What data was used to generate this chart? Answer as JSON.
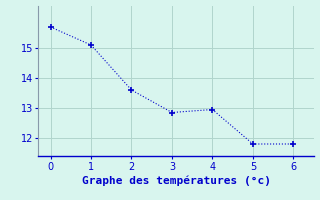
{
  "x": [
    0,
    1,
    2,
    3,
    4,
    5,
    6
  ],
  "y": [
    15.7,
    15.1,
    13.6,
    12.85,
    12.95,
    11.8,
    11.8
  ],
  "line_color": "#0000cc",
  "marker": "+",
  "marker_size": 5,
  "bg_color": "#d8f5ee",
  "grid_color": "#b0d4cc",
  "xlabel": "Graphe des températures (°c)",
  "xlabel_fontsize": 8,
  "xlim": [
    -0.3,
    6.5
  ],
  "ylim": [
    11.4,
    16.4
  ],
  "yticks": [
    12,
    13,
    14,
    15
  ],
  "xticks": [
    0,
    1,
    2,
    3,
    4,
    5,
    6
  ],
  "tick_color": "#0000cc",
  "tick_fontsize": 7,
  "spine_color": "#8899aa"
}
